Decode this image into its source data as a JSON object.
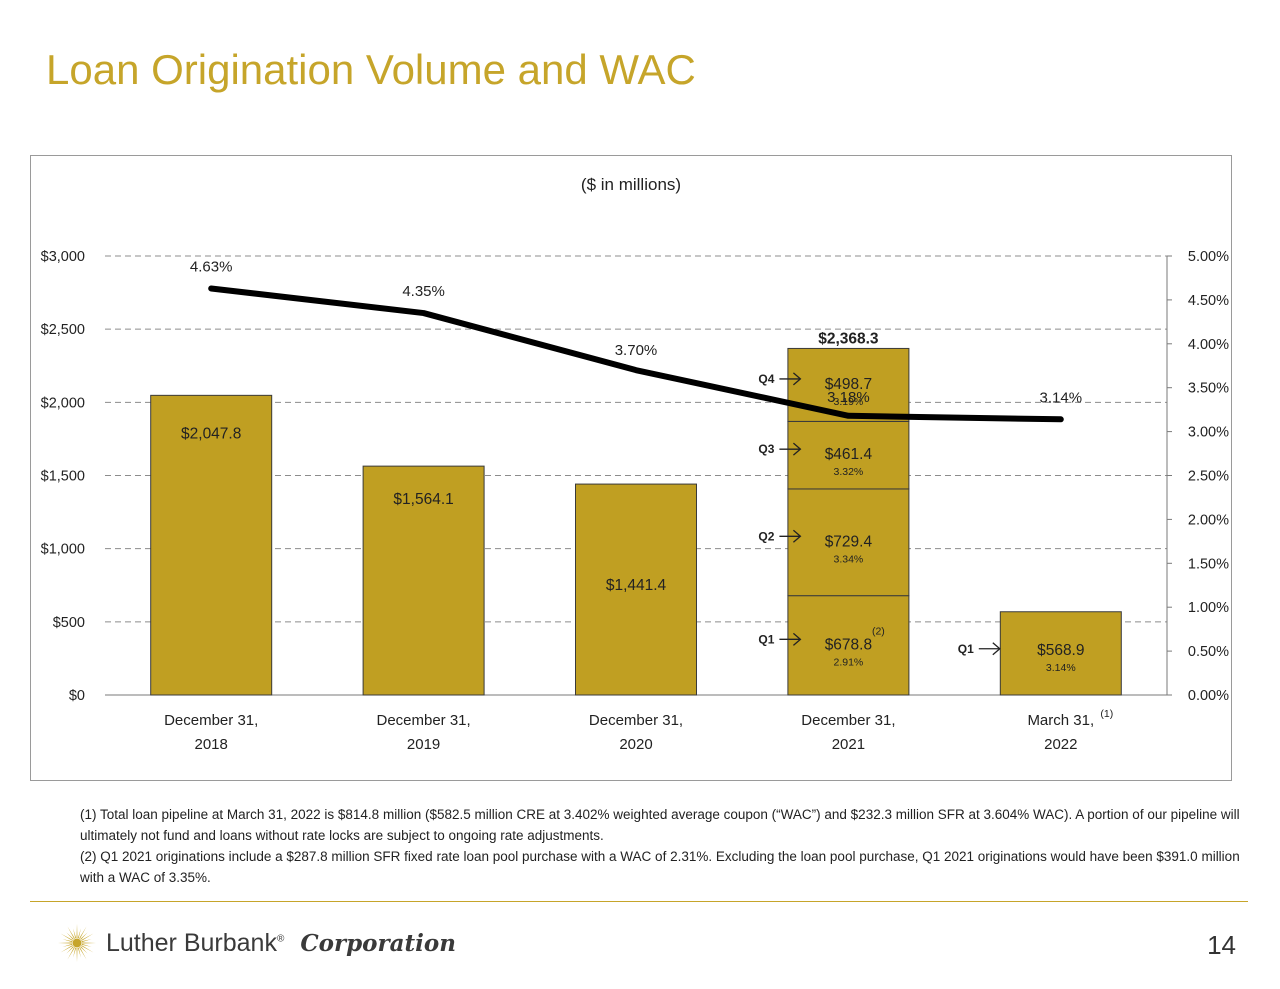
{
  "slide": {
    "title": "Loan Origination Volume and WAC",
    "page_number": "14"
  },
  "chart_data": {
    "type": "bar",
    "subtitle": "($ in millions)",
    "categories": [
      [
        "December 31,",
        "2018"
      ],
      [
        "December 31,",
        "2019"
      ],
      [
        "December 31,",
        "2020"
      ],
      [
        "December 31,",
        "2021"
      ],
      [
        "March 31,",
        "2022"
      ]
    ],
    "category_superscripts": [
      "",
      "",
      "",
      "",
      "(1)"
    ],
    "values": [
      2047.8,
      1564.1,
      1441.4,
      2368.3,
      568.9
    ],
    "value_labels": [
      "$2,047.8",
      "$1,564.1",
      "$1,441.4",
      "$2,368.3",
      "$568.9"
    ],
    "stacked": {
      "category_index": 3,
      "segments": [
        {
          "quarter": "Q1",
          "value": 678.8,
          "label": "$678.8",
          "wac": "2.91%",
          "superscript": "(2)"
        },
        {
          "quarter": "Q2",
          "value": 729.4,
          "label": "$729.4",
          "wac": "3.34%",
          "superscript": ""
        },
        {
          "quarter": "Q3",
          "value": 461.4,
          "label": "$461.4",
          "wac": "3.32%",
          "superscript": ""
        },
        {
          "quarter": "Q4",
          "value": 498.7,
          "label": "$498.7",
          "wac": "3.19%",
          "superscript": ""
        }
      ]
    },
    "last_bar": {
      "quarter": "Q1",
      "wac": "3.14%"
    },
    "line_series": {
      "values": [
        4.63,
        4.35,
        3.7,
        3.18,
        3.14
      ],
      "labels": [
        "4.63%",
        "4.35%",
        "3.70%",
        "3.18%",
        "3.14%"
      ],
      "color": "#000000"
    },
    "y_left": {
      "min": 0,
      "max": 3000,
      "ticks": [
        0,
        500,
        1000,
        1500,
        2000,
        2500,
        3000
      ],
      "tick_labels": [
        "$0",
        "$500",
        "$1,000",
        "$1,500",
        "$2,000",
        "$2,500",
        "$3,000"
      ]
    },
    "y_right": {
      "min": 0,
      "max": 5,
      "ticks": [
        0,
        0.5,
        1,
        1.5,
        2,
        2.5,
        3,
        3.5,
        4,
        4.5,
        5
      ],
      "tick_labels": [
        "0.00%",
        "0.50%",
        "1.00%",
        "1.50%",
        "2.00%",
        "2.50%",
        "3.00%",
        "3.50%",
        "4.00%",
        "4.50%",
        "5.00%"
      ]
    },
    "grid": "dashed horizontal",
    "colors": {
      "bar": "#C09F22",
      "bar_border": "#3a3a3a",
      "line": "#000000",
      "grid": "#8c8c8c"
    }
  },
  "footnotes": [
    "(1) Total loan pipeline at March 31, 2022 is $814.8 million ($582.5 million CRE at 3.402% weighted average coupon (“WAC”) and $232.3 million SFR at 3.604% WAC). A portion of our pipeline will ultimately not fund and loans without rate locks are subject to ongoing rate adjustments.",
    "(2) Q1 2021 originations include a $287.8 million SFR fixed rate loan pool purchase with a WAC of 2.31%.  Excluding the loan pool purchase, Q1 2021 originations would have been $391.0 million with a WAC of 3.35%."
  ],
  "logo": {
    "name": "Luther Burbank",
    "registered": "®",
    "corporation": "Corporation",
    "icon": "sunburst-logo-icon",
    "color": "#C6A52A"
  }
}
